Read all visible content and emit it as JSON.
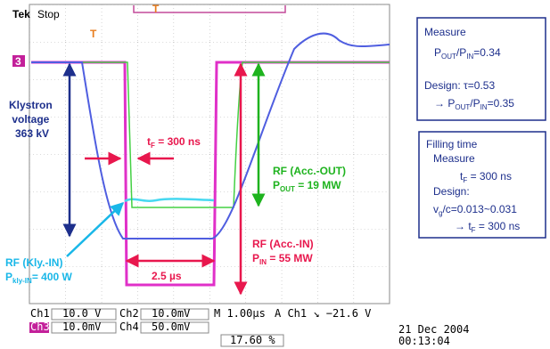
{
  "scope": {
    "brand": "Tek",
    "status": "Stop",
    "trigger_mark": "T",
    "channel_marker": "3",
    "readout": {
      "ch1_label": "Ch1",
      "ch1_scale": "10.0 V",
      "ch2_label": "Ch2",
      "ch2_scale": "10.0mV",
      "timebase": "M 1.00µs",
      "trigger": "A  Ch1  ↘  −21.6 V",
      "ch3_label": "Ch3",
      "ch3_scale": "10.0mV",
      "ch4_label": "Ch4",
      "ch4_scale": "50.0mV",
      "position": "17.60 %",
      "date": "21 Dec 2004",
      "time": "00:13:04"
    }
  },
  "annotations": {
    "klystron": [
      "Klystron",
      "voltage",
      "363 kV"
    ],
    "fill_time": [
      "t",
      "F",
      " = 300 ns"
    ],
    "rf_out": {
      "title": "RF (Acc.-OUT)",
      "p": "P",
      "sub": "OUT",
      "rest": " = 19 MW"
    },
    "rf_in": {
      "title": "RF (Acc.-IN)",
      "p": "P",
      "sub": "IN",
      "rest": " = 55 MW"
    },
    "rf_kly": {
      "title": "RF (Kly.-IN)",
      "p": "P",
      "sub": "kly-IN",
      "rest": "= 400 W"
    },
    "pulse_width": "2.5 µs"
  },
  "measure_box": {
    "title": "Measure",
    "ratio": [
      "P",
      "OUT",
      "/P",
      "IN",
      "=0.34"
    ],
    "design": "Design: τ=0.53",
    "design_ratio": [
      "→ P",
      "OUT",
      "/P",
      "IN",
      "=0.35"
    ]
  },
  "filling_box": {
    "title": "Filling time",
    "measure": "Measure",
    "measured": [
      "t",
      "F",
      " = 300 ns"
    ],
    "design": "Design:",
    "vg": [
      "v",
      "g",
      "/c=0.013~0.031"
    ],
    "design_result": [
      "→ t",
      "F",
      " = 300 ns"
    ]
  }
}
